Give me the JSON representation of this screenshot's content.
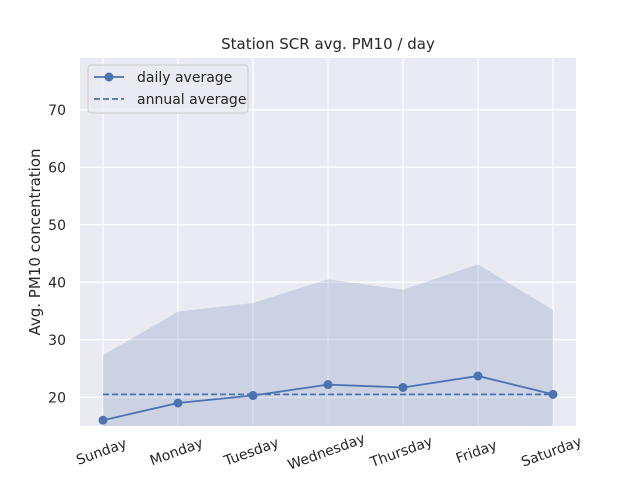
{
  "chart_data": {
    "type": "line",
    "title": "Station SCR avg. PM10 / day",
    "xlabel": "",
    "ylabel": "Avg. PM10 concentration",
    "categories": [
      "Sunday",
      "Monday",
      "Tuesday",
      "Wednesday",
      "Thursday",
      "Friday",
      "Saturday"
    ],
    "series": [
      {
        "name": "daily average",
        "values": [
          16.0,
          19.0,
          20.3,
          22.2,
          21.7,
          23.7,
          20.5
        ],
        "style": "line-marker",
        "color": "#4c72b0"
      },
      {
        "name": "annual average",
        "values": [
          20.5,
          20.5,
          20.5,
          20.5,
          20.5,
          20.5,
          20.5
        ],
        "style": "dashed",
        "color": "#4c72b0"
      }
    ],
    "band": {
      "lower": [
        15.0,
        15.0,
        15.0,
        15.0,
        15.0,
        15.0,
        15.0
      ],
      "upper": [
        27.3,
        34.9,
        36.4,
        40.5,
        38.7,
        43.1,
        35.2
      ],
      "color": "#4c72b0",
      "opacity": 0.2
    },
    "ylim": [
      15,
      79
    ],
    "yticks": [
      20,
      30,
      40,
      50,
      60,
      70
    ],
    "grid": true,
    "legend": "top-left",
    "background": "#eaeaf2"
  }
}
